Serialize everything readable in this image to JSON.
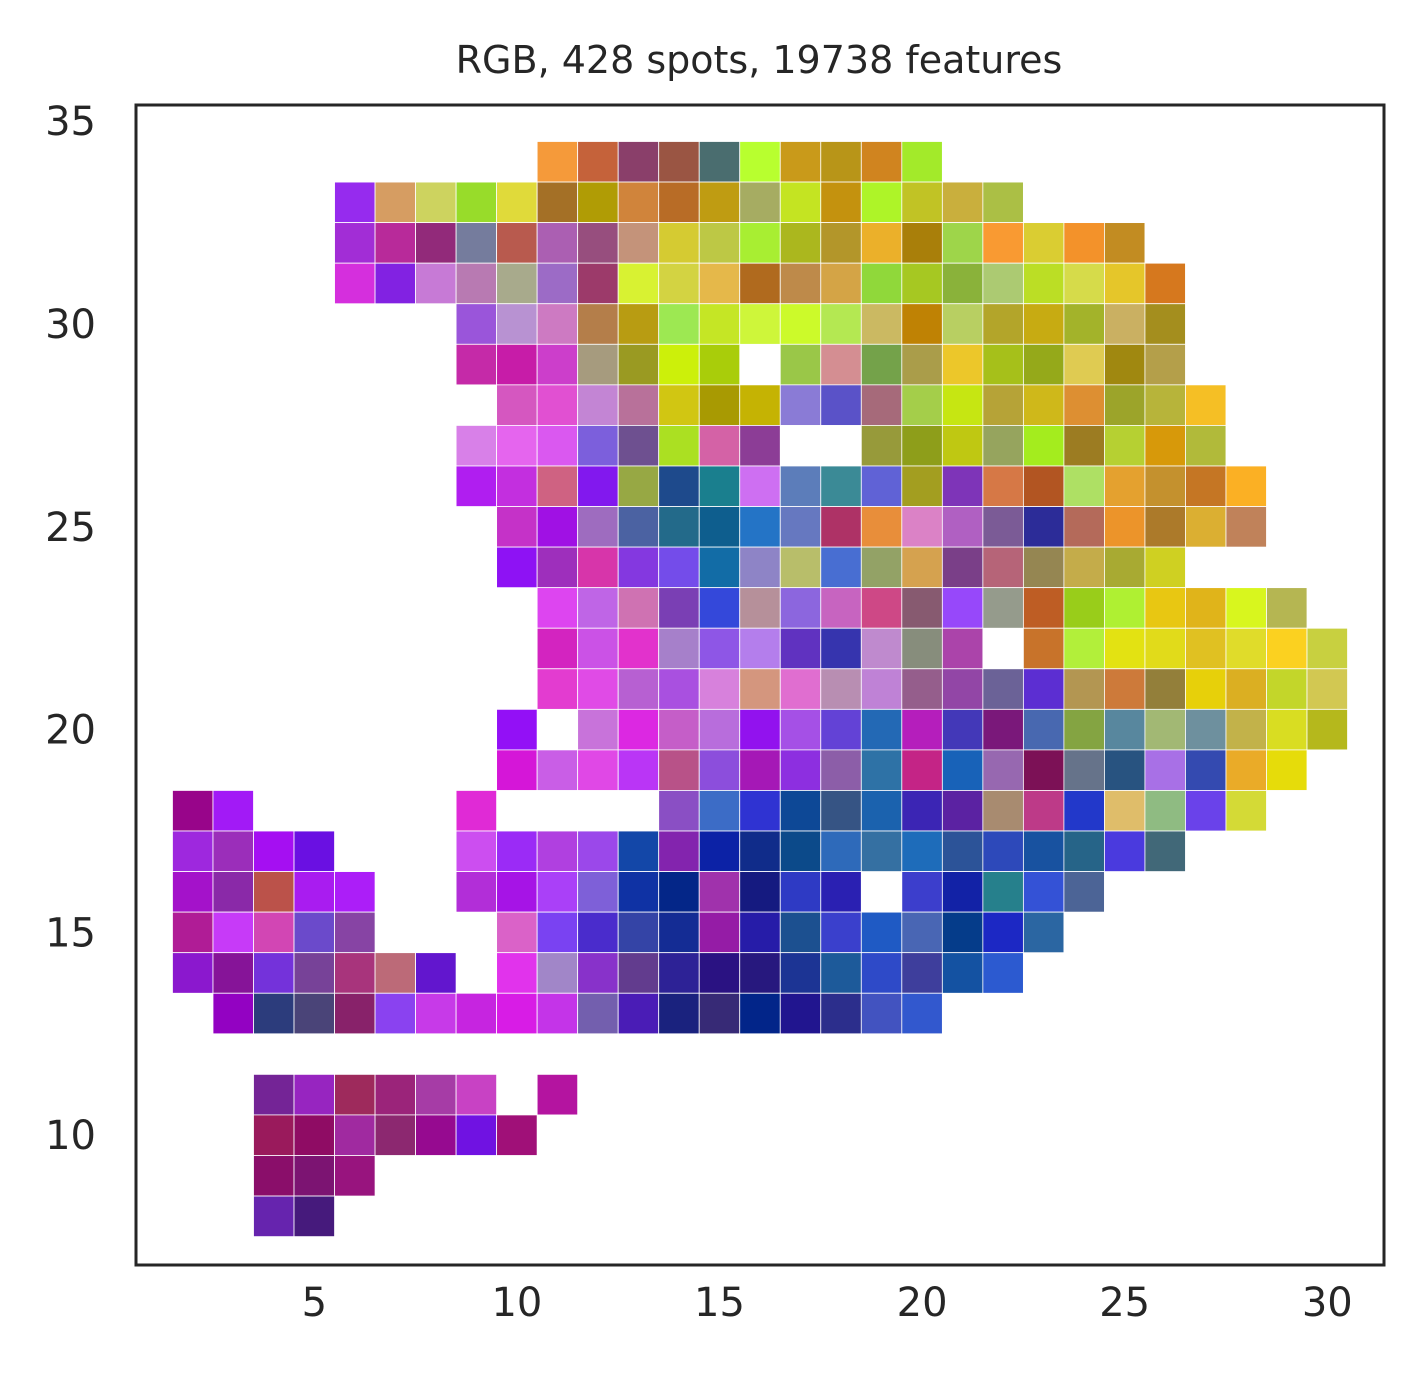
{
  "chart_data": {
    "type": "heatmap",
    "title": "RGB, 428 spots, 19738 features",
    "xlabel": "",
    "ylabel": "",
    "xlim": [
      0.6,
      31.4
    ],
    "ylim": [
      6.8,
      35.4
    ],
    "xticks": [
      5,
      10,
      15,
      20,
      25,
      30
    ],
    "yticks": [
      10,
      15,
      20,
      25,
      30,
      35
    ],
    "grid": false,
    "background": "#ffffff",
    "frame_color": "#262626",
    "rows": [
      {
        "y": 34,
        "x_start": 11,
        "colors": [
          "#f59a3a",
          "#c5623a",
          "#8a3f6a",
          "#9a5543",
          "#4a6d6f",
          "#b8ff2f",
          "#c99a1a",
          "#b89518",
          "#d0841f",
          "#a3ea2a"
        ]
      },
      {
        "y": 33,
        "x_start": 6,
        "colors": [
          "#962bee",
          "#d69d62",
          "#cdd35f",
          "#98dc2a",
          "#e0da3a",
          "#a47026",
          "#b09c05",
          "#d0843b",
          "#b86c26",
          "#bf9c12",
          "#a6ac62",
          "#c4e422",
          "#c4920e",
          "#aef428",
          "#c1c325",
          "#c9af3d",
          "#abbf45"
        ]
      },
      {
        "y": 32,
        "x_start": 6,
        "colors": [
          "#a22dd6",
          "#b82a9a",
          "#922a7a",
          "#757c9d",
          "#b85a4e",
          "#ab5fb2",
          "#974e7e",
          "#c4937a",
          "#d5cb32",
          "#bdc845",
          "#a8ee32",
          "#abb71e",
          "#b3962a",
          "#ebb02a",
          "#a97f0a",
          "#9ed54a",
          "#f99a32",
          "#dacd32",
          "#f3922a",
          "#c28c22"
        ]
      },
      {
        "y": 31,
        "x_start": 6,
        "colors": [
          "#d52fdd",
          "#8222e2",
          "#c77ad6",
          "#b87ab2",
          "#a8aa8c",
          "#9c6bc6",
          "#9c3a6a",
          "#d8f232",
          "#d3d342",
          "#e5b84a",
          "#b06a1e",
          "#be8a4a",
          "#d4a446",
          "#90d83a",
          "#a6c822",
          "#8ab23a",
          "#acca72",
          "#bbde25",
          "#d6db4a",
          "#e5c62a",
          "#d6781e"
        ]
      },
      {
        "y": 30,
        "x_start": 9,
        "colors": [
          "#9a55da",
          "#b892d2",
          "#cd7ac2",
          "#b47e4a",
          "#b89c12",
          "#9de852",
          "#c5e625",
          "#cef63a",
          "#ccfa2a",
          "#b4e852",
          "#cbb962",
          "#bf8204",
          "#b8cf62",
          "#b3a52a",
          "#c7ab12",
          "#a3b32a",
          "#cab062",
          "#a48e1e"
        ]
      },
      {
        "y": 29,
        "x_start": 9,
        "colors": [
          "#c52aa8",
          "#c71ca8",
          "#cc3ecb",
          "#a69b7e",
          "#9a9a22",
          "#ccf00a",
          "#a9cd0a",
          null,
          "#9ac748",
          "#d48e92",
          "#74a24a",
          "#aa9d4a",
          "#ecc72a",
          "#a6c01a",
          "#95a91a",
          "#dfcb52",
          "#a08810",
          "#b49f4a"
        ]
      },
      {
        "y": 28,
        "x_start": 10,
        "colors": [
          "#d557c0",
          "#e150d2",
          "#c385d4",
          "#b8719a",
          "#d1c612",
          "#a89a02",
          "#c5b303",
          "#8a7bd6",
          "#5a52c8",
          "#a66a7a",
          "#a4ce4a",
          "#c6e612",
          "#b6a337",
          "#cfb81a",
          "#dd8f32",
          "#9ca42a",
          "#b7b43a",
          "#f5bf25"
        ]
      },
      {
        "y": 27,
        "x_start": 9,
        "colors": [
          "#d880e8",
          "#e565ee",
          "#da58f0",
          "#7c5fdc",
          "#6e5090",
          "#abe022",
          "#d462a6",
          "#8c3d96",
          null,
          null,
          "#979a3a",
          "#8e9e1a",
          "#bfc812",
          "#96a45e",
          "#a4ec1e",
          "#9c7c22",
          "#b6d032",
          "#d7990a",
          "#b1ba3a"
        ]
      },
      {
        "y": 26,
        "x_start": 9,
        "colors": [
          "#b01ef0",
          "#c32fdf",
          "#cf6282",
          "#8218ee",
          "#97a844",
          "#1e4a8c",
          "#1a7f8e",
          "#ce6ff2",
          "#5c7dba",
          "#3b8a96",
          "#6062d6",
          "#a39e20",
          "#7e34b8",
          "#d67846",
          "#b25522",
          "#aee064",
          "#e4a12f",
          "#c4912e",
          "#c57624",
          "#fbb024"
        ]
      },
      {
        "y": 25,
        "x_start": 10,
        "colors": [
          "#c532c8",
          "#a011e4",
          "#9e6cbf",
          "#4b62a2",
          "#236a8a",
          "#0e5e8e",
          "#2474c6",
          "#6678c0",
          "#ae3266",
          "#e88e3a",
          "#db82c6",
          "#b060c2",
          "#7b5b96",
          "#2c2c98",
          "#b46a5a",
          "#ec942a",
          "#ac7a2a",
          "#dbaf32",
          "#c0825a"
        ]
      },
      {
        "y": 24,
        "x_start": 10,
        "colors": [
          "#8e12f4",
          "#9e2fbc",
          "#d735aa",
          "#8438e0",
          "#744cea",
          "#126ca6",
          "#8e84c6",
          "#b8be6a",
          "#486ed2",
          "#93a266",
          "#d5a24f",
          "#7a3f88",
          "#b66478",
          "#958652",
          "#c4ac4a",
          "#a8aa32",
          "#cfd022"
        ]
      },
      {
        "y": 23,
        "x_start": 11,
        "colors": [
          "#dd45f0",
          "#bf65e6",
          "#cf72b2",
          "#7a3fb4",
          "#3448da",
          "#b6909a",
          "#8c66de",
          "#c764c0",
          "#ce4886",
          "#875a70",
          "#9748fa",
          "#959b8c",
          "#be5d24",
          "#99cd1a",
          "#aff032",
          "#e8c712",
          "#e0b41a",
          "#d8f61e",
          "#b5b652"
        ]
      },
      {
        "y": 22,
        "x_start": 11,
        "colors": [
          "#d324c0",
          "#cb52e6",
          "#e232cc",
          "#a680ca",
          "#8e56e6",
          "#b47eec",
          "#6032c0",
          "#3634ae",
          "#bf8ace",
          "#878d7c",
          "#ab44aa",
          null,
          "#c8732a",
          "#b2ef3a",
          "#e3e212",
          "#e1db1a",
          "#e0c122",
          "#e0dc2a",
          "#fbd120",
          "#c8d040"
        ]
      },
      {
        "y": 21,
        "x_start": 11,
        "colors": [
          "#e33cd0",
          "#e04be6",
          "#b760d2",
          "#a950e0",
          "#d781dc",
          "#d4967e",
          "#e06ed0",
          "#b88eb2",
          "#bf82d6",
          "#955e8c",
          "#9246a6",
          "#6b6297",
          "#5c2ed2",
          "#b39652",
          "#cd7a3a",
          "#937f3a",
          "#e7d00a",
          "#dbaf22",
          "#c3d62a",
          "#d2c852"
        ]
      },
      {
        "y": 20,
        "x_start": 10,
        "colors": [
          "#9310f6",
          null,
          "#c873da",
          "#dc28e2",
          "#c55ec8",
          "#b86ddc",
          "#9212ee",
          "#a550e6",
          "#6342d6",
          "#2369b5",
          "#b51ebc",
          "#4338b8",
          "#7a187a",
          "#4868b0",
          "#84a442",
          "#58879e",
          "#a2b874",
          "#6e909e",
          "#c2b24a",
          "#d9dd22",
          "#b5b81c"
        ]
      },
      {
        "y": 19,
        "x_start": 10,
        "colors": [
          "#d516d8",
          "#c95ee6",
          "#e048e6",
          "#ba35f6",
          "#b85288",
          "#8c4edc",
          "#a518b6",
          "#8d2fe0",
          "#8c5ea8",
          "#2e72a6",
          "#c42486",
          "#1862b8",
          "#9768b0",
          "#7c1156",
          "#66738a",
          "#285380",
          "#a870e6",
          "#344ab0",
          "#eaab28",
          "#e6dc0a"
        ]
      },
      {
        "y": 18,
        "x_start": 2,
        "colors": [
          "#98058a",
          "#a21af6",
          null,
          null,
          null,
          null,
          null,
          "#e02ad6",
          null,
          null,
          null,
          null,
          "#8a4fc4",
          "#3c6cc6",
          "#2f33d2",
          "#0d4896",
          "#365484",
          "#1b62ae",
          "#3b25b4",
          "#5b22a2",
          "#a88b70",
          "#bd3a88",
          "#2238ca",
          "#dfbd6a",
          "#8fbb82",
          "#6a42ea",
          "#d4da36"
        ]
      },
      {
        "y": 17,
        "x_start": 2,
        "colors": [
          "#9e28de",
          "#9b2eba",
          "#a50ff2",
          "#6a10e2",
          null,
          null,
          null,
          "#cc4ef0",
          "#9b2bf6",
          "#b040e0",
          "#9b48ea",
          "#1347a8",
          "#8324ae",
          "#0c22a6",
          "#102c8a",
          "#0c4a8a",
          "#2e6aba",
          "#3570a2",
          "#1e6cba",
          "#2c5398",
          "#2d49ba",
          "#1852a0",
          "#266488",
          "#4a3ade",
          "#416878"
        ]
      },
      {
        "y": 16,
        "x_start": 2,
        "colors": [
          "#a412ca",
          "#8a29a8",
          "#bb524a",
          "#a91cf0",
          "#ac1ef8",
          null,
          null,
          "#b22ed8",
          "#a614e6",
          "#aa40f8",
          "#7e60d8",
          "#0f32a4",
          "#042688",
          "#a032ac",
          "#151a80",
          "#2e3ac4",
          "#2a20b2",
          null,
          "#3c3ecc",
          "#1222a6",
          "#26808c",
          "#3452d6",
          "#4c6496"
        ]
      },
      {
        "y": 15,
        "x_start": 2,
        "colors": [
          "#b01c96",
          "#c73af8",
          "#d246b4",
          "#6b4acb",
          "#8744a4",
          null,
          null,
          null,
          "#da62c8",
          "#7a42f2",
          "#4a2ccc",
          "#3444a6",
          "#142c94",
          "#951ca6",
          "#261ca8",
          "#1c5090",
          "#3a40cc",
          "#1f5ac4",
          "#4966b4",
          "#053c8a",
          "#1c28c4",
          "#2b66a2"
        ]
      },
      {
        "y": 14,
        "x_start": 2,
        "colors": [
          "#8b18ce",
          "#861498",
          "#7432da",
          "#774298",
          "#a8347c",
          "#bc6a78",
          "#6216ce",
          null,
          "#e133ec",
          "#a186c8",
          "#8832ca",
          "#623c8e",
          "#2d2296",
          "#2a1282",
          "#27187e",
          "#1c3494",
          "#1d5a9a",
          "#2e4ac8",
          "#3e3e9c",
          "#1452a2",
          "#2c5ad0"
        ]
      },
      {
        "y": 13,
        "x_start": 3,
        "colors": [
          "#9302c2",
          "#2c3c7c",
          "#4a4478",
          "#88226a",
          "#8a42f0",
          "#c73ae8",
          "#c625e0",
          "#d81ce6",
          "#c434e8",
          "#735fae",
          "#4a1cb6",
          "#1a227e",
          "#372a76",
          "#022589",
          "#21158f",
          "#2c2e8c",
          "#4253c0",
          "#3258ce"
        ]
      },
      {
        "y": 11,
        "x_start": 4,
        "colors": [
          "#742496",
          "#9725c0",
          "#9e2a5c",
          "#9b247a",
          "#a63ca6",
          "#c842c4",
          null,
          "#b414a0"
        ]
      },
      {
        "y": 10,
        "x_start": 4,
        "colors": [
          "#9a1a5c",
          "#8f0c64",
          "#a02aa0",
          "#8c2870",
          "#960a90",
          "#7012e2",
          "#a01078"
        ]
      },
      {
        "y": 9,
        "x_start": 4,
        "colors": [
          "#8a0e6a",
          "#7c1472",
          "#98147e"
        ]
      },
      {
        "y": 8,
        "x_start": 4,
        "colors": [
          "#6624ae",
          "#461a7c"
        ]
      }
    ]
  }
}
